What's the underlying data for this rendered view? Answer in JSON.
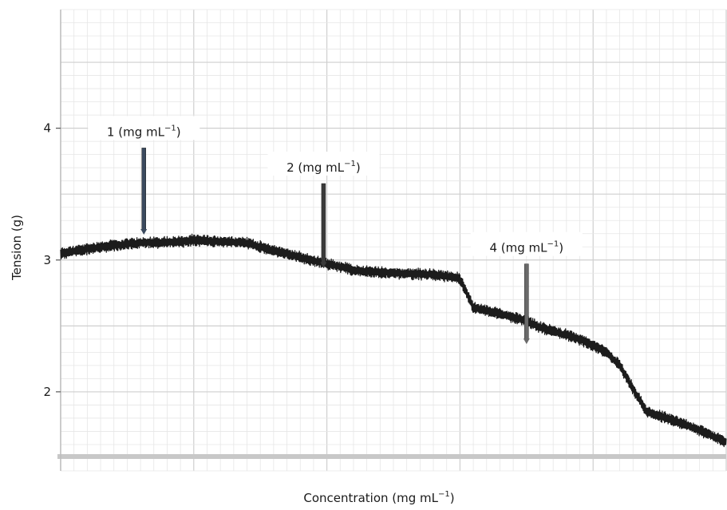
{
  "chart_data": {
    "type": "line",
    "xlabel": "Concentration (mg mL",
    "xlabel_unit_sup": "−1",
    "xlabel_unit_close": ")",
    "ylabel": "Tension (g)",
    "ylim": [
      1.4,
      4.9
    ],
    "yticks": [
      2,
      3,
      4
    ],
    "ytick_labels": [
      "2",
      "3",
      "4"
    ],
    "xlim": [
      0,
      100
    ],
    "grid": true,
    "series": [
      {
        "x": [
          0,
          6,
          12,
          18,
          20,
          24,
          28,
          30,
          36,
          40,
          42,
          44,
          50,
          56,
          60,
          62,
          70,
          72,
          78,
          82,
          84,
          88,
          94,
          100
        ],
        "values": [
          3.05,
          3.1,
          3.13,
          3.14,
          3.15,
          3.14,
          3.13,
          3.1,
          3.02,
          2.97,
          2.95,
          2.92,
          2.9,
          2.89,
          2.86,
          2.64,
          2.54,
          2.49,
          2.4,
          2.3,
          2.2,
          1.85,
          1.75,
          1.62
        ]
      }
    ],
    "annotations": [
      {
        "text": "1 (mg mL",
        "sup": "−1",
        "close": ")",
        "x": 12.5,
        "y": 3.18,
        "top": 3.85,
        "color": "#3b4a5e"
      },
      {
        "text": "2 (mg mL",
        "sup": "−1",
        "close": ")",
        "x": 39.5,
        "y": 2.93,
        "top": 3.58,
        "color": "#3a3a3a"
      },
      {
        "text": "4 (mg mL",
        "sup": "−1",
        "close": ")",
        "x": 70.0,
        "y": 2.35,
        "top": 2.97,
        "color": "#6a6a6a"
      }
    ],
    "colors": {
      "trace": "#1c1c1c",
      "grid_major": "#cfcfcf",
      "grid_minor": "#e6e6e6",
      "baseline": "#c8c8c8"
    }
  }
}
